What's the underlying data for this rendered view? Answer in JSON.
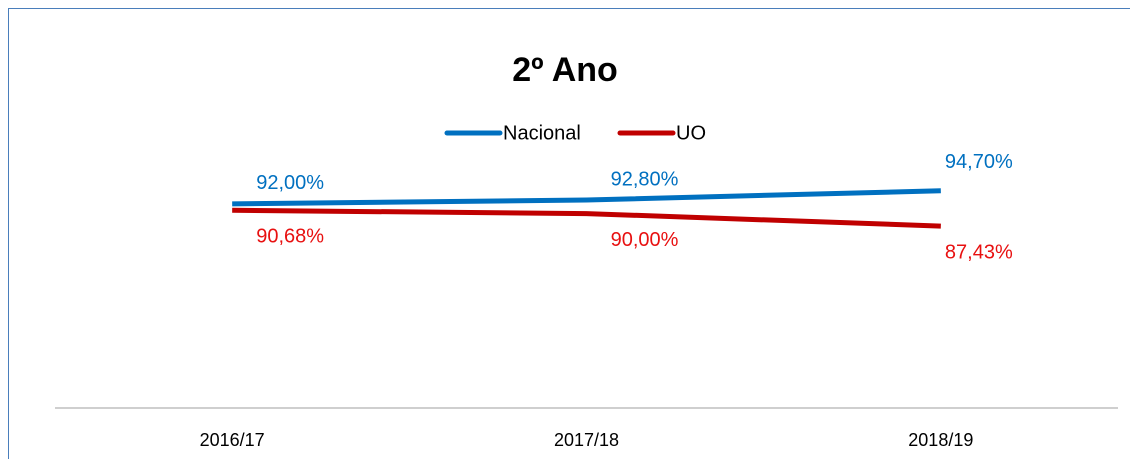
{
  "chart_data": {
    "type": "line",
    "title": "2º Ano",
    "categories": [
      "2016/17",
      "2017/18",
      "2018/19"
    ],
    "series": [
      {
        "name": "Nacional",
        "color": "#0070c0",
        "values": [
          92.0,
          92.8,
          94.7
        ],
        "value_labels": [
          "92,00%",
          "92,80%",
          "94,70%"
        ]
      },
      {
        "name": "UO",
        "color": "#c00000",
        "values": [
          90.68,
          90.0,
          87.43
        ],
        "value_labels": [
          "90,68%",
          "90,00%",
          "87,43%"
        ]
      }
    ],
    "ylim": [
      50,
      100
    ]
  }
}
